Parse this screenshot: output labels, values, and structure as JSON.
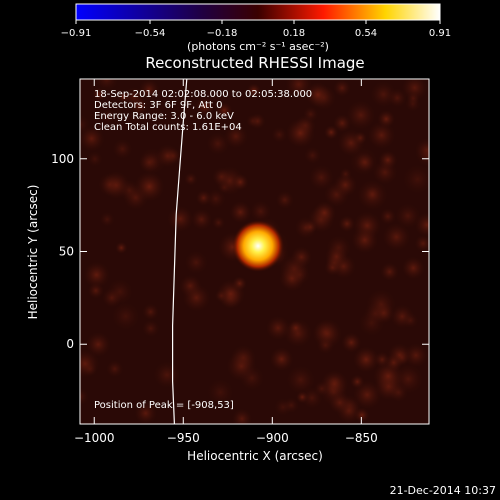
{
  "chart_data": {
    "type": "heatmap",
    "title": "Reconstructed RHESSI Image",
    "xlabel": "Heliocentric X (arcsec)",
    "ylabel": "Heliocentric Y (arcsec)",
    "xlim": [
      -1008,
      -812
    ],
    "ylim": [
      -43,
      143
    ],
    "xticks": [
      -1000,
      -950,
      -900,
      -850
    ],
    "xtick_labels": [
      "−1000",
      "−950",
      "−900",
      "−850"
    ],
    "yticks": [
      0,
      50,
      100
    ],
    "ytick_labels": [
      "0",
      "50",
      "100"
    ],
    "colorbar": {
      "range": [
        -0.91,
        0.91
      ],
      "ticks": [
        -0.91,
        -0.54,
        -0.18,
        0.18,
        0.54,
        0.91
      ],
      "tick_labels": [
        "−0.91",
        "−0.54",
        "−0.18",
        "0.18",
        "0.54",
        "0.91"
      ],
      "unit_label": "(photons cm⁻² s⁻¹ asec⁻²)",
      "colors": [
        "#0000ff",
        "#000000",
        "#ff0000",
        "#ffff00",
        "#ffffff"
      ]
    },
    "annotations": [
      "18-Sep-2014 02:02:08.000 to 02:05:38.000",
      "Detectors: 3F 6F 9F, Att 0",
      "Energy Range: 3.0 - 6.0 keV",
      "Clean    Total counts: 1.61E+04"
    ],
    "peak_label": "Position of Peak = [-908,53]",
    "peak": {
      "x": -908,
      "y": 53,
      "value": 0.91
    },
    "limb_curve": [
      [
        -948,
        143
      ],
      [
        -950,
        120
      ],
      [
        -952,
        95
      ],
      [
        -954,
        70
      ],
      [
        -955,
        40
      ],
      [
        -956,
        10
      ],
      [
        -956,
        -20
      ],
      [
        -955,
        -43
      ]
    ],
    "grid": false
  },
  "footer": {
    "date": "21-Dec-2014 10:37"
  }
}
